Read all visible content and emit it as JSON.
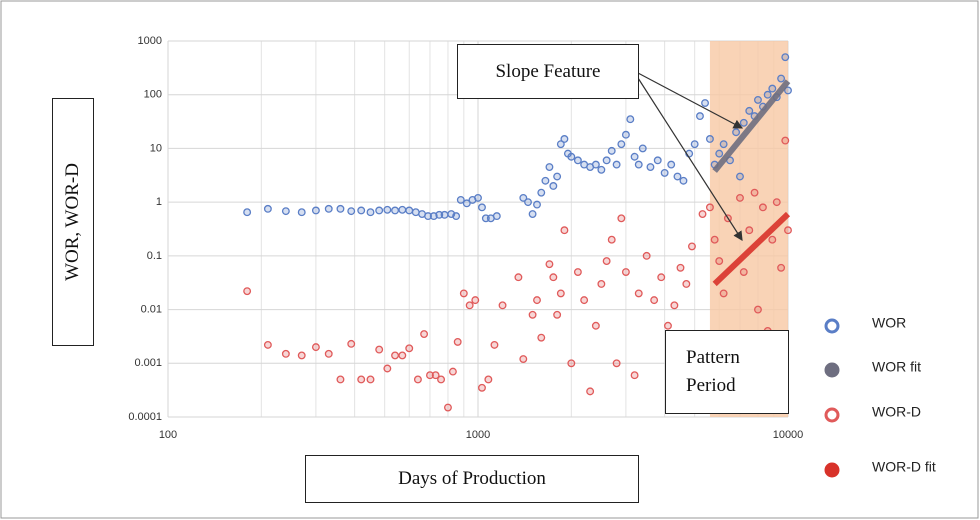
{
  "chart_data": {
    "type": "scatter",
    "xlabel": "Days of Production",
    "ylabel": "WOR, WOR-D",
    "log_x": true,
    "log_y": true,
    "xlim": [
      100,
      10000
    ],
    "ylim": [
      0.0001,
      1000
    ],
    "xticks": [
      100,
      1000,
      10000
    ],
    "yticks": [
      0.0001,
      0.001,
      0.01,
      0.1,
      1,
      10,
      100,
      1000
    ],
    "x_minor_grid": [
      200,
      300,
      400,
      500,
      600,
      700,
      800,
      900,
      2000,
      3000,
      4000,
      5000,
      6000,
      7000,
      8000,
      9000
    ],
    "grid": true,
    "highlight_x": [
      5600,
      10000
    ],
    "highlight_color": "#f7c8a4",
    "annotations": [
      "Slope Feature",
      "Pattern Period"
    ],
    "series": [
      {
        "name": "WOR",
        "color": "#5a7ec6",
        "mode": "markers",
        "x": [
          180,
          210,
          240,
          270,
          300,
          330,
          360,
          390,
          420,
          450,
          480,
          510,
          540,
          570,
          600,
          630,
          660,
          690,
          720,
          750,
          780,
          820,
          850,
          880,
          920,
          960,
          1000,
          1030,
          1060,
          1100,
          1150,
          1400,
          1450,
          1500,
          1550,
          1600,
          1650,
          1700,
          1750,
          1800,
          1850,
          1900,
          1950,
          2000,
          2100,
          2200,
          2300,
          2400,
          2500,
          2600,
          2700,
          2800,
          2900,
          3000,
          3100,
          3200,
          3300,
          3400,
          3600,
          3800,
          4000,
          4200,
          4400,
          4600,
          4800,
          5000,
          5200,
          5400,
          5600,
          5800,
          6000,
          6200,
          6500,
          6800,
          7000,
          7200,
          7500,
          7800,
          8000,
          8300,
          8600,
          8900,
          9200,
          9500,
          9800,
          10000
        ],
        "values": [
          0.65,
          0.75,
          0.68,
          0.65,
          0.7,
          0.75,
          0.75,
          0.68,
          0.7,
          0.65,
          0.7,
          0.72,
          0.7,
          0.72,
          0.7,
          0.65,
          0.6,
          0.55,
          0.55,
          0.58,
          0.58,
          0.6,
          0.55,
          1.1,
          0.95,
          1.1,
          1.2,
          0.8,
          0.5,
          0.5,
          0.55,
          1.2,
          1.0,
          0.6,
          0.9,
          1.5,
          2.5,
          4.5,
          2,
          3,
          12,
          15,
          8,
          7,
          6,
          5,
          4.5,
          5,
          4,
          6,
          9,
          5,
          12,
          18,
          35,
          7,
          5,
          10,
          4.5,
          6,
          3.5,
          5,
          3,
          2.5,
          8,
          12,
          40,
          70,
          15,
          5,
          8,
          12,
          6,
          20,
          3,
          30,
          50,
          40,
          80,
          60,
          100,
          130,
          90,
          200,
          500,
          120
        ]
      },
      {
        "name": "WOR fit",
        "color": "#6e6e80",
        "mode": "line",
        "x": [
          5800,
          10000
        ],
        "values": [
          3.8,
          178
        ]
      },
      {
        "name": "WOR-D",
        "color": "#e05a5a",
        "mode": "markers",
        "x": [
          180,
          210,
          240,
          270,
          300,
          330,
          360,
          390,
          420,
          450,
          480,
          510,
          540,
          570,
          600,
          640,
          670,
          700,
          730,
          760,
          800,
          830,
          860,
          900,
          940,
          980,
          1030,
          1080,
          1130,
          1200,
          1350,
          1400,
          1500,
          1550,
          1600,
          1700,
          1750,
          1800,
          1850,
          1900,
          2000,
          2100,
          2200,
          2300,
          2400,
          2500,
          2600,
          2700,
          2800,
          2900,
          3000,
          3200,
          3300,
          3500,
          3700,
          3900,
          4100,
          4300,
          4500,
          4700,
          4900,
          5100,
          5300,
          5600,
          5800,
          6000,
          6200,
          6400,
          6700,
          7000,
          7200,
          7500,
          7800,
          8000,
          8300,
          8600,
          8900,
          9200,
          9500,
          9800,
          10000
        ],
        "values": [
          0.022,
          0.0022,
          0.0015,
          0.0014,
          0.002,
          0.0015,
          0.0005,
          0.0023,
          0.0005,
          0.0005,
          0.0018,
          0.0008,
          0.0014,
          0.0014,
          0.0019,
          0.0005,
          0.0035,
          0.0006,
          0.0006,
          0.0005,
          0.00015,
          0.0007,
          0.0025,
          0.02,
          0.012,
          0.015,
          0.00035,
          0.0005,
          0.0022,
          0.012,
          0.04,
          0.0012,
          0.008,
          0.015,
          0.003,
          0.07,
          0.04,
          0.008,
          0.02,
          0.3,
          0.001,
          0.05,
          0.015,
          0.0003,
          0.005,
          0.03,
          0.08,
          0.2,
          0.001,
          0.5,
          0.05,
          0.0006,
          0.02,
          0.1,
          0.015,
          0.04,
          0.005,
          0.012,
          0.06,
          0.03,
          0.15,
          0.002,
          0.6,
          0.8,
          0.2,
          0.08,
          0.02,
          0.5,
          0.003,
          1.2,
          0.05,
          0.3,
          1.5,
          0.01,
          0.8,
          0.004,
          0.2,
          1.0,
          0.06,
          14,
          0.3
        ]
      },
      {
        "name": "WOR-D fit",
        "color": "#d8322a",
        "mode": "line",
        "x": [
          5800,
          10000
        ],
        "values": [
          0.03,
          0.6
        ]
      }
    ]
  }
}
